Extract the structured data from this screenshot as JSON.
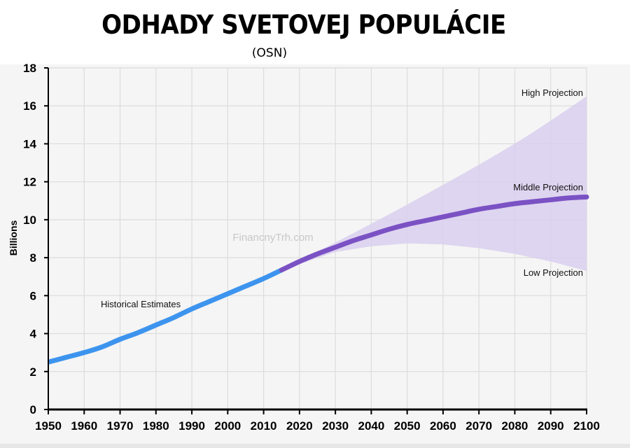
{
  "title": "ODHADY SVETOVEJ POPULÁCIE",
  "subtitle": "(OSN)",
  "watermark": "FinancnyTrh.com",
  "colors": {
    "historical": "#3d94ee",
    "middle": "#7b52c4",
    "band": "#d9cfee",
    "axis": "#000000",
    "grid": "#dcdcdc"
  },
  "chart_data": {
    "type": "line",
    "ylabel": "Billions",
    "xlabel": "",
    "xlim": [
      1950,
      2100
    ],
    "ylim": [
      0,
      18
    ],
    "x_ticks": [
      "1950",
      "1960",
      "1970",
      "1980",
      "1990",
      "2000",
      "2010",
      "2020",
      "2030",
      "2040",
      "2050",
      "2060",
      "2070",
      "2080",
      "2090",
      "2100"
    ],
    "y_ticks": [
      "0",
      "2",
      "4",
      "6",
      "8",
      "10",
      "12",
      "14",
      "16",
      "18"
    ],
    "grid": true,
    "series": [
      {
        "name": "Historical Estimates",
        "x": [
          1950,
          1955,
          1960,
          1965,
          1970,
          1975,
          1980,
          1985,
          1990,
          1995,
          2000,
          2005,
          2010,
          2015
        ],
        "values": [
          2.5,
          2.75,
          3.0,
          3.3,
          3.7,
          4.05,
          4.45,
          4.85,
          5.3,
          5.7,
          6.1,
          6.5,
          6.9,
          7.35
        ]
      },
      {
        "name": "Middle Projection",
        "x": [
          2015,
          2020,
          2025,
          2030,
          2035,
          2040,
          2045,
          2050,
          2055,
          2060,
          2065,
          2070,
          2075,
          2080,
          2085,
          2090,
          2095,
          2100
        ],
        "values": [
          7.35,
          7.8,
          8.2,
          8.55,
          8.9,
          9.2,
          9.5,
          9.75,
          9.95,
          10.15,
          10.35,
          10.55,
          10.7,
          10.85,
          10.95,
          11.05,
          11.15,
          11.2
        ]
      },
      {
        "name": "High Projection",
        "x": [
          2015,
          2030,
          2050,
          2070,
          2085,
          2100
        ],
        "values": [
          7.35,
          8.8,
          10.8,
          12.9,
          14.6,
          16.5
        ]
      },
      {
        "name": "Low Projection",
        "x": [
          2015,
          2030,
          2040,
          2050,
          2060,
          2070,
          2080,
          2090,
          2100
        ],
        "values": [
          7.35,
          8.3,
          8.6,
          8.75,
          8.7,
          8.5,
          8.2,
          7.8,
          7.3
        ]
      }
    ]
  }
}
